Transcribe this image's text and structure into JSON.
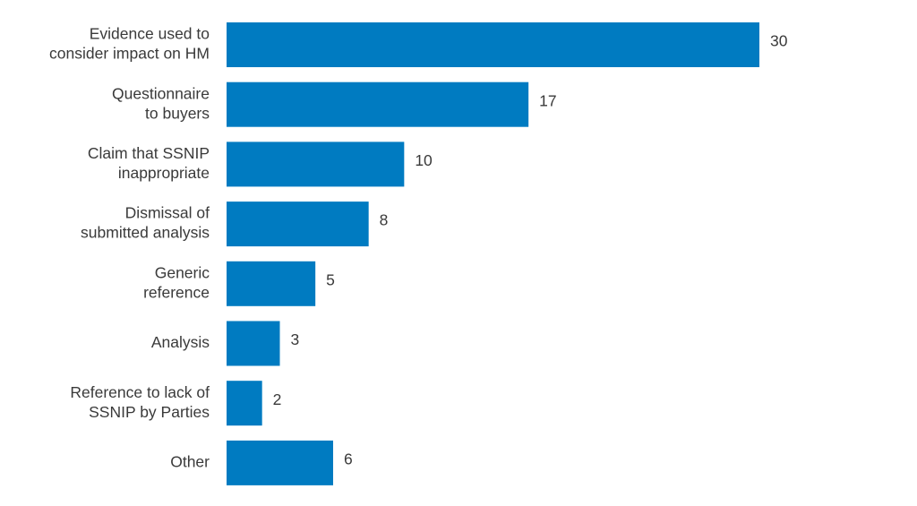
{
  "chart_data": {
    "type": "bar",
    "orientation": "horizontal",
    "categories": [
      [
        "Evidence used to",
        "consider impact on HM"
      ],
      [
        "Questionnaire",
        "to buyers"
      ],
      [
        "Claim that SSNIP",
        "inappropriate"
      ],
      [
        "Dismissal of",
        "submitted analysis"
      ],
      [
        "Generic",
        "reference"
      ],
      [
        "Analysis"
      ],
      [
        "Reference to lack of",
        "SSNIP by Parties"
      ],
      [
        "Other"
      ]
    ],
    "values": [
      30,
      17,
      10,
      8,
      5,
      3,
      2,
      6
    ],
    "xlim": [
      0,
      30
    ],
    "bar_color": "#007bc1",
    "grid": false,
    "legend": "none"
  }
}
